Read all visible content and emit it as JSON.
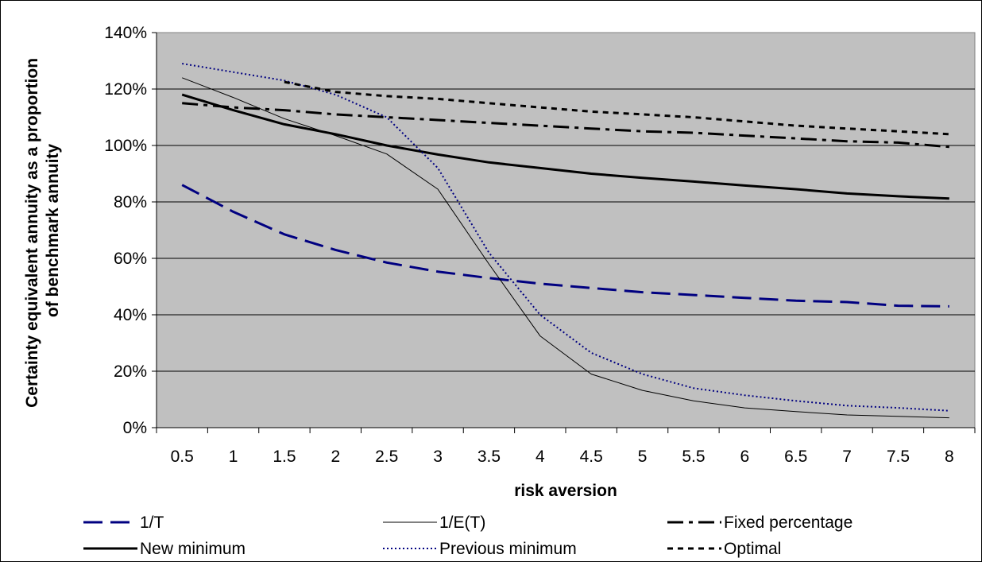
{
  "chart_data": {
    "type": "line",
    "title": "",
    "xlabel": "risk aversion",
    "ylabel_line1": "Certainty equivalent annuity as a proportion",
    "ylabel_line2": "of benchmark annuity",
    "x": [
      0.5,
      1,
      1.5,
      2,
      2.5,
      3,
      3.5,
      4,
      4.5,
      5,
      5.5,
      6,
      6.5,
      7,
      7.5,
      8
    ],
    "x_tick_labels": [
      "0.5",
      "1",
      "1.5",
      "2",
      "2.5",
      "3",
      "3.5",
      "4",
      "4.5",
      "5",
      "5.5",
      "6",
      "6.5",
      "7",
      "7.5",
      "8"
    ],
    "ylim": [
      0,
      1.4
    ],
    "y_ticks": [
      0,
      0.2,
      0.4,
      0.6,
      0.8,
      1.0,
      1.2,
      1.4
    ],
    "y_tick_labels": [
      "0%",
      "20%",
      "40%",
      "60%",
      "80%",
      "100%",
      "120%",
      "140%"
    ],
    "grid": true,
    "legend_position": "bottom",
    "plot_background": "#c0c0c0",
    "series": [
      {
        "name": "1/T",
        "color": "#000080",
        "style": "long-dash",
        "width": 3,
        "values": [
          0.86,
          0.765,
          0.685,
          0.63,
          0.585,
          0.553,
          0.53,
          0.51,
          0.495,
          0.48,
          0.47,
          0.46,
          0.45,
          0.445,
          0.432,
          0.43
        ]
      },
      {
        "name": "1/E(T)",
        "color": "#000000",
        "style": "solid",
        "width": 1,
        "values": [
          1.24,
          1.17,
          1.095,
          1.035,
          0.97,
          0.845,
          0.58,
          0.325,
          0.19,
          0.132,
          0.095,
          0.07,
          0.057,
          0.045,
          0.04,
          0.035
        ]
      },
      {
        "name": "Fixed percentage",
        "color": "#000000",
        "style": "dash-dot",
        "width": 3,
        "values": [
          1.15,
          1.135,
          1.125,
          1.11,
          1.1,
          1.09,
          1.08,
          1.07,
          1.06,
          1.05,
          1.045,
          1.035,
          1.025,
          1.015,
          1.01,
          0.995
        ]
      },
      {
        "name": "New minimum",
        "color": "#000000",
        "style": "solid",
        "width": 3,
        "values": [
          1.18,
          1.125,
          1.075,
          1.04,
          1.0,
          0.968,
          0.94,
          0.92,
          0.9,
          0.885,
          0.872,
          0.858,
          0.845,
          0.83,
          0.82,
          0.812
        ]
      },
      {
        "name": "Previous minimum",
        "color": "#000080",
        "style": "dotted",
        "width": 2,
        "values": [
          1.29,
          1.26,
          1.23,
          1.18,
          1.1,
          0.92,
          0.62,
          0.4,
          0.265,
          0.19,
          0.14,
          0.115,
          0.095,
          0.078,
          0.07,
          0.06
        ]
      },
      {
        "name": "Optimal",
        "color": "#000000",
        "style": "dashed",
        "width": 3,
        "values": [
          null,
          null,
          1.225,
          1.19,
          1.175,
          1.165,
          1.15,
          1.135,
          1.12,
          1.11,
          1.1,
          1.085,
          1.07,
          1.06,
          1.05,
          1.04
        ]
      }
    ]
  }
}
